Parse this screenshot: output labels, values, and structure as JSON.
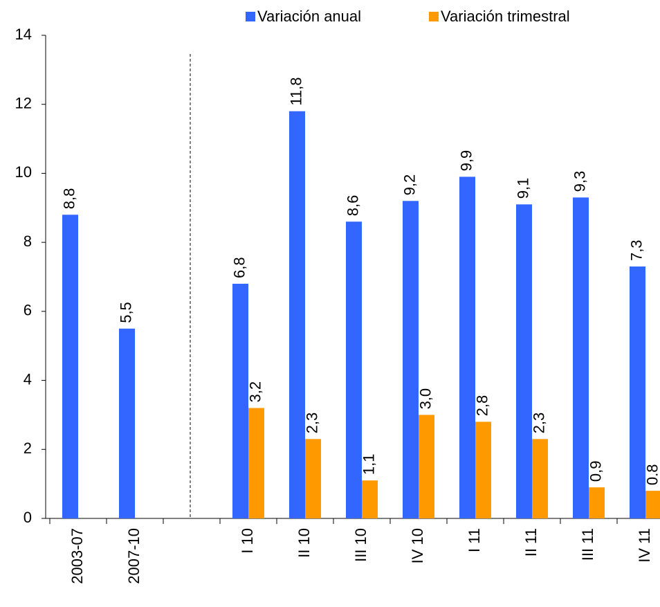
{
  "chart_data": {
    "type": "bar",
    "categories": [
      "2003-07",
      "2007-10",
      null,
      "I 10",
      "II 10",
      "III 10",
      "IV 10",
      "I 11",
      "II 11",
      "III 11",
      "IV 11"
    ],
    "series": [
      {
        "name": "Variación anual",
        "color": "#3366ff",
        "values": [
          8.8,
          5.5,
          null,
          6.8,
          11.8,
          8.6,
          9.2,
          9.9,
          9.1,
          9.3,
          7.3
        ],
        "value_labels": [
          "8,8",
          "5,5",
          null,
          "6,8",
          "11,8",
          "8,6",
          "9,2",
          "9,9",
          "9,1",
          "9,3",
          "7,3"
        ]
      },
      {
        "name": "Variación trimestral",
        "color": "#ff9900",
        "values": [
          null,
          null,
          null,
          3.2,
          2.3,
          1.1,
          3.0,
          2.8,
          2.3,
          0.9,
          0.8
        ],
        "value_labels": [
          null,
          null,
          null,
          "3,2",
          "2,3",
          "1,1",
          "3,0",
          "2,8",
          "2,3",
          "0,9",
          "0.8"
        ]
      }
    ],
    "ylim": [
      0,
      14
    ],
    "yticks": [
      0,
      2,
      4,
      6,
      8,
      10,
      12,
      14
    ],
    "grid": false,
    "legend": "top"
  }
}
